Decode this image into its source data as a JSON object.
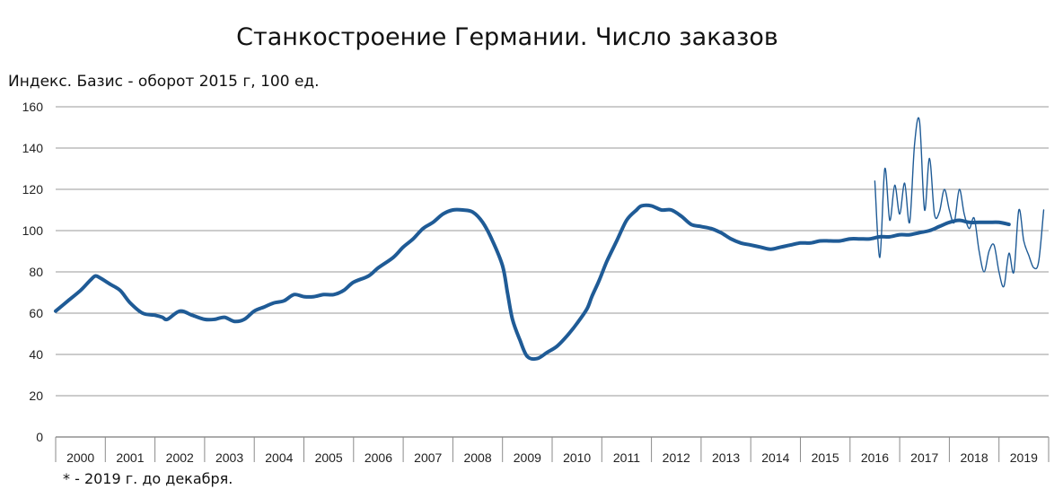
{
  "chart_data": {
    "type": "line",
    "title": "Станкостроение Германии. Число заказов",
    "ylabel": "Индекс. Базис  - оборот 2015 г, 100 ед.",
    "footnote": "* - 2019  г. до декабря.",
    "xlabel": "",
    "ylim": [
      0,
      160
    ],
    "xlim": [
      2000,
      2020
    ],
    "grid": true,
    "legend": "none",
    "y_ticks": [
      "0",
      "20",
      "40",
      "60",
      "80",
      "100",
      "120",
      "140",
      "160"
    ],
    "x_ticks": [
      "2000",
      "2001",
      "2002",
      "2003",
      "2004",
      "2005",
      "2006",
      "2007",
      "2008",
      "2009",
      "2010",
      "2011",
      "2012",
      "2013",
      "2014",
      "2015",
      "2016",
      "2017",
      "2018",
      "2019"
    ],
    "line_color": "#1f5b96",
    "series": [
      {
        "style": "thick",
        "x": [
          2000.0,
          2000.25,
          2000.5,
          2000.7,
          2000.8,
          2000.9,
          2001.1,
          2001.3,
          2001.5,
          2001.75,
          2002.0,
          2002.15,
          2002.25,
          2002.5,
          2002.75,
          2003.0,
          2003.2,
          2003.4,
          2003.6,
          2003.8,
          2004.0,
          2004.2,
          2004.4,
          2004.6,
          2004.8,
          2005.0,
          2005.2,
          2005.4,
          2005.6,
          2005.8,
          2006.0,
          2006.3,
          2006.5,
          2006.8,
          2007.0,
          2007.2,
          2007.4,
          2007.6,
          2007.8,
          2008.0,
          2008.2,
          2008.4,
          2008.6,
          2008.8,
          2009.0,
          2009.1,
          2009.2,
          2009.35,
          2009.5,
          2009.7,
          2009.9,
          2010.1,
          2010.3,
          2010.5,
          2010.7,
          2010.8,
          2010.95,
          2011.1,
          2011.3,
          2011.5,
          2011.7,
          2011.8,
          2012.0,
          2012.2,
          2012.4,
          2012.6,
          2012.8,
          2013.0,
          2013.2,
          2013.4,
          2013.6,
          2013.8,
          2014.0,
          2014.2,
          2014.4,
          2014.6,
          2014.8,
          2015.0,
          2015.2,
          2015.4,
          2015.6,
          2015.8,
          2016.0,
          2016.2,
          2016.4,
          2016.6,
          2016.8,
          2017.0,
          2017.2,
          2017.4,
          2017.6,
          2017.8,
          2018.0,
          2018.2,
          2018.4,
          2018.6,
          2018.8,
          2019.0,
          2019.2
        ],
        "values": [
          61,
          66,
          71,
          76,
          78,
          77,
          74,
          71,
          65,
          60,
          59,
          58,
          57,
          61,
          59,
          57,
          57,
          58,
          56,
          57,
          61,
          63,
          65,
          66,
          69,
          68,
          68,
          69,
          69,
          71,
          75,
          78,
          82,
          87,
          92,
          96,
          101,
          104,
          108,
          110,
          110,
          109,
          104,
          95,
          83,
          70,
          57,
          47,
          39,
          38,
          41,
          44,
          49,
          55,
          62,
          68,
          76,
          85,
          95,
          105,
          110,
          112,
          112,
          110,
          110,
          107,
          103,
          102,
          101,
          99,
          96,
          94,
          93,
          92,
          91,
          92,
          93,
          94,
          94,
          95,
          95,
          95,
          96,
          96,
          96,
          97,
          97,
          98,
          98,
          99,
          100,
          102,
          104,
          105,
          104,
          104,
          104,
          104,
          103
        ]
      },
      {
        "style": "thin",
        "x": [
          2016.5,
          2016.6,
          2016.7,
          2016.8,
          2016.9,
          2017.0,
          2017.1,
          2017.2,
          2017.3,
          2017.4,
          2017.5,
          2017.6,
          2017.7,
          2017.8,
          2017.9,
          2018.0,
          2018.1,
          2018.2,
          2018.3,
          2018.4,
          2018.5,
          2018.6,
          2018.7,
          2018.8,
          2018.9,
          2019.0,
          2019.1,
          2019.2,
          2019.3,
          2019.4,
          2019.5,
          2019.6,
          2019.7,
          2019.8,
          2019.9
        ],
        "values": [
          124,
          87,
          130,
          105,
          122,
          108,
          123,
          104,
          142,
          153,
          110,
          135,
          108,
          109,
          120,
          110,
          104,
          120,
          108,
          101,
          106,
          90,
          80,
          90,
          93,
          80,
          73,
          89,
          80,
          110,
          95,
          88,
          82,
          85,
          110
        ]
      }
    ]
  }
}
